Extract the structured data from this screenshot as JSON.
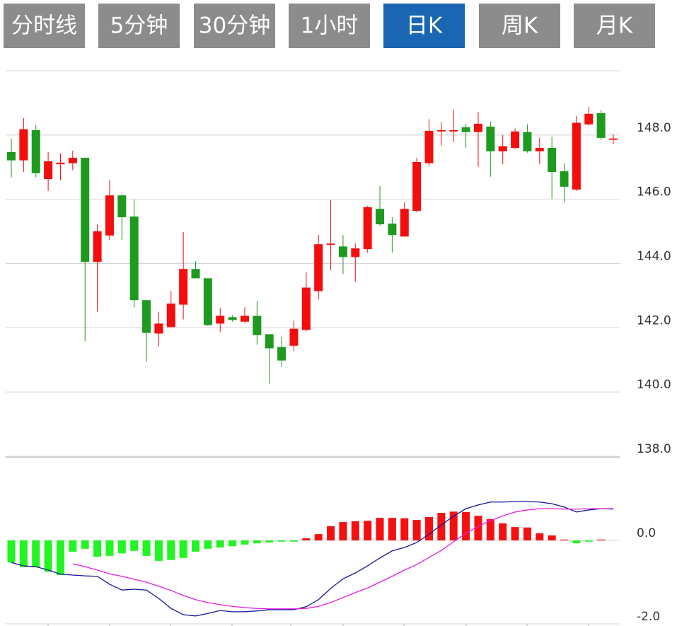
{
  "tabs": [
    {
      "label": "分时线",
      "active": false
    },
    {
      "label": "5分钟",
      "active": false
    },
    {
      "label": "30分钟",
      "active": false
    },
    {
      "label": "1小时",
      "active": false
    },
    {
      "label": "日K",
      "active": true
    },
    {
      "label": "周K",
      "active": false
    },
    {
      "label": "月K",
      "active": false
    }
  ],
  "chart_data": [
    {
      "type": "candlestick",
      "open": [
        147.47,
        147.21,
        148.15,
        146.63,
        147.09,
        147.12,
        147.29,
        144.05,
        144.87,
        146.12,
        145.46,
        142.86,
        141.82,
        142.02,
        142.72,
        143.83,
        143.54,
        142.13,
        142.33,
        142.19,
        142.37,
        141.8,
        141.4,
        141.44,
        141.93,
        143.14,
        144.58,
        144.53,
        144.2,
        144.45,
        145.7,
        145.24,
        144.84,
        145.64,
        147.12,
        148.11,
        148.11,
        148.24,
        148.09,
        148.26,
        147.49,
        147.6,
        148.09,
        147.49,
        147.6,
        146.87,
        146.3,
        148.33,
        148.68,
        147.85
      ],
      "high": [
        147.89,
        148.53,
        148.31,
        147.47,
        147.43,
        147.51,
        147.29,
        145.22,
        146.59,
        146.17,
        145.99,
        142.86,
        142.5,
        143.14,
        144.98,
        144.07,
        143.54,
        142.61,
        142.39,
        142.64,
        142.83,
        141.8,
        141.71,
        142.22,
        143.72,
        144.89,
        145.97,
        144.89,
        144.62,
        145.79,
        146.41,
        145.44,
        145.9,
        147.29,
        148.49,
        148.4,
        148.79,
        148.35,
        148.71,
        148.42,
        148.0,
        148.2,
        148.33,
        147.91,
        147.93,
        147.12,
        148.6,
        148.88,
        148.77,
        148.02
      ],
      "low": [
        146.68,
        146.85,
        146.68,
        146.26,
        146.59,
        146.9,
        141.58,
        142.5,
        144.73,
        144.73,
        142.64,
        140.94,
        141.42,
        142.02,
        142.26,
        143.54,
        142.06,
        141.86,
        142.19,
        142.15,
        141.47,
        140.25,
        140.78,
        141.27,
        141.89,
        142.88,
        143.8,
        143.67,
        143.43,
        144.34,
        145.17,
        144.34,
        144.84,
        145.59,
        147.03,
        147.67,
        147.78,
        147.6,
        147.01,
        146.7,
        147.09,
        147.56,
        147.45,
        147.09,
        146.01,
        145.9,
        146.26,
        148.29,
        147.85,
        147.71
      ],
      "close": [
        147.21,
        148.18,
        146.81,
        147.18,
        147.14,
        147.29,
        144.05,
        145.0,
        146.12,
        145.44,
        142.86,
        141.84,
        142.13,
        142.75,
        143.83,
        143.54,
        142.08,
        142.37,
        142.24,
        142.37,
        141.77,
        141.36,
        140.98,
        141.97,
        143.25,
        144.6,
        144.62,
        144.2,
        144.47,
        145.75,
        145.22,
        144.89,
        145.7,
        147.16,
        148.13,
        148.15,
        148.15,
        148.09,
        148.35,
        147.49,
        147.65,
        148.11,
        147.49,
        147.6,
        146.85,
        146.39,
        148.38,
        148.66,
        147.91,
        147.89
      ],
      "colors": {
        "up": "#f40d0d",
        "down": "#1e9a1e"
      },
      "ylim": [
        138,
        150
      ],
      "yticks": [
        {
          "value": 138,
          "label": "138.0"
        },
        {
          "value": 140,
          "label": "140.0"
        },
        {
          "value": 142,
          "label": "142.0"
        },
        {
          "value": 144,
          "label": "144.0"
        },
        {
          "value": 146,
          "label": "146.0"
        },
        {
          "value": 148,
          "label": "148.0"
        }
      ],
      "grid": true
    },
    {
      "type": "macd",
      "series": [
        {
          "type": "bar",
          "colors": {
            "up": "#f41010",
            "down": "#22f522"
          },
          "values": [
            -0.53,
            -0.64,
            -0.64,
            -0.75,
            -0.83,
            -0.27,
            -0.2,
            -0.39,
            -0.37,
            -0.31,
            -0.25,
            -0.37,
            -0.49,
            -0.47,
            -0.42,
            -0.27,
            -0.2,
            -0.17,
            -0.14,
            -0.1,
            -0.07,
            -0.05,
            -0.03,
            -0.03,
            0.05,
            0.15,
            0.34,
            0.44,
            0.46,
            0.47,
            0.54,
            0.54,
            0.53,
            0.49,
            0.56,
            0.66,
            0.69,
            0.68,
            0.59,
            0.51,
            0.41,
            0.32,
            0.31,
            0.17,
            0.12,
            0.02,
            -0.07,
            -0.03,
            0.02,
            0
          ]
        },
        {
          "type": "line",
          "color": "#14149c",
          "values": [
            -0.53,
            -0.61,
            -0.63,
            -0.71,
            -0.81,
            -0.83,
            -0.85,
            -0.86,
            -1.05,
            -1.19,
            -1.17,
            -1.19,
            -1.39,
            -1.63,
            -1.78,
            -1.81,
            -1.75,
            -1.68,
            -1.71,
            -1.71,
            -1.69,
            -1.66,
            -1.66,
            -1.66,
            -1.59,
            -1.42,
            -1.15,
            -0.92,
            -0.78,
            -0.61,
            -0.42,
            -0.25,
            -0.17,
            -0.05,
            0.15,
            0.37,
            0.58,
            0.76,
            0.85,
            0.92,
            0.92,
            0.93,
            0.93,
            0.92,
            0.88,
            0.8,
            0.68,
            0.73,
            0.76,
            0.75
          ]
        },
        {
          "type": "line",
          "color": "#e619e6",
          "values": [
            null,
            null,
            null,
            null,
            null,
            -0.56,
            -0.63,
            -0.71,
            -0.8,
            -0.86,
            -0.93,
            -1.0,
            -1.1,
            -1.2,
            -1.32,
            -1.42,
            -1.49,
            -1.54,
            -1.58,
            -1.61,
            -1.63,
            -1.64,
            -1.64,
            -1.64,
            -1.63,
            -1.58,
            -1.49,
            -1.37,
            -1.25,
            -1.14,
            -1.0,
            -0.86,
            -0.71,
            -0.58,
            -0.41,
            -0.24,
            -0.03,
            0.17,
            0.34,
            0.47,
            0.59,
            0.68,
            0.73,
            0.76,
            0.76,
            0.75,
            0.75,
            0.76,
            0.76,
            0.76
          ]
        }
      ],
      "ylim": [
        -2,
        2
      ],
      "yticks": [
        {
          "value": -2,
          "label": "-2.0"
        },
        {
          "value": 0,
          "label": "0.0"
        }
      ],
      "grid": true
    }
  ]
}
